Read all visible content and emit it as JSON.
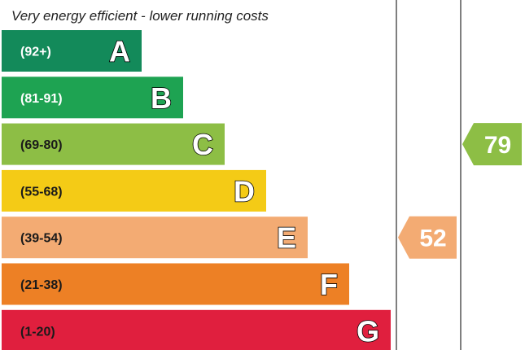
{
  "chart_data": {
    "type": "bar",
    "title": "Very energy efficient - lower running costs",
    "bands": [
      {
        "letter": "A",
        "range": "(92+)",
        "color": "#138a5a",
        "dark_text": false
      },
      {
        "letter": "B",
        "range": "(81-91)",
        "color": "#1ea352",
        "dark_text": false
      },
      {
        "letter": "C",
        "range": "(69-80)",
        "color": "#8dbe45",
        "dark_text": true
      },
      {
        "letter": "D",
        "range": "(55-68)",
        "color": "#f4cb16",
        "dark_text": true
      },
      {
        "letter": "E",
        "range": "(39-54)",
        "color": "#f3ab73",
        "dark_text": true
      },
      {
        "letter": "F",
        "range": "(21-38)",
        "color": "#ed8025",
        "dark_text": true
      },
      {
        "letter": "G",
        "range": "(1-20)",
        "color": "#e01f3e",
        "dark_text": true
      }
    ],
    "ratings": [
      {
        "column": "current",
        "score": "52",
        "band": "E",
        "color": "#f3ab73"
      },
      {
        "column": "potential",
        "score": "79",
        "band": "C",
        "color": "#8dbe45"
      }
    ]
  }
}
